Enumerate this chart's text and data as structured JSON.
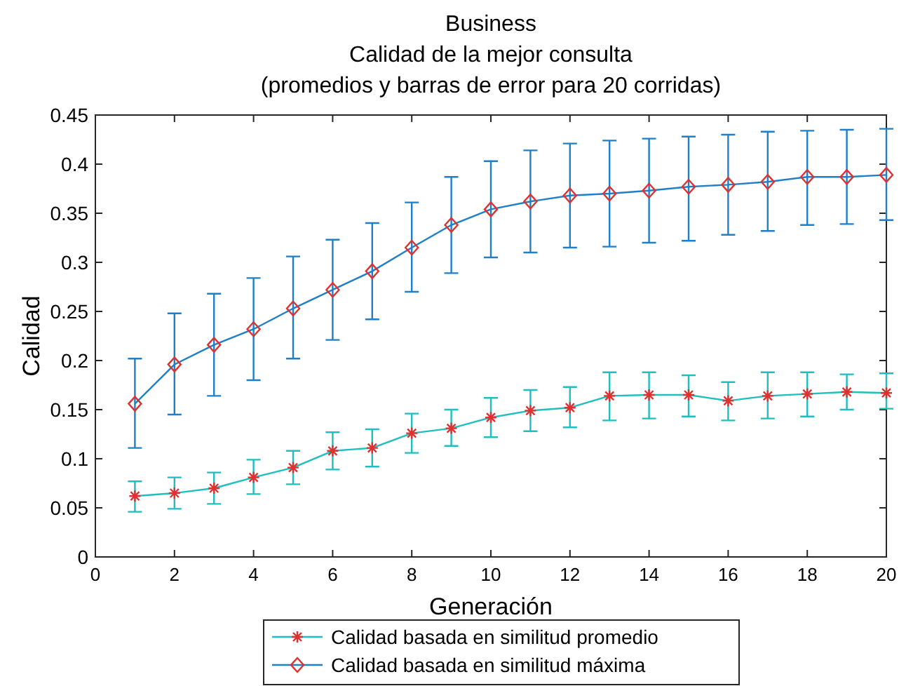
{
  "chart_data": {
    "type": "line",
    "title": "Business",
    "subtitle": "Calidad de la mejor consulta\n(promedios y barras de error para 20 corridas)",
    "xlabel": "Generación",
    "ylabel": "Calidad",
    "x": [
      1,
      2,
      3,
      4,
      5,
      6,
      7,
      8,
      9,
      10,
      11,
      12,
      13,
      14,
      15,
      16,
      17,
      18,
      19,
      20
    ],
    "series": [
      {
        "name": "Calidad basada en similitud promedio",
        "color": "#1fbfbf",
        "marker": "cross",
        "values": [
          0.062,
          0.065,
          0.07,
          0.081,
          0.091,
          0.108,
          0.111,
          0.126,
          0.131,
          0.142,
          0.149,
          0.152,
          0.164,
          0.165,
          0.165,
          0.159,
          0.164,
          0.166,
          0.168,
          0.167
        ],
        "errors": [
          [
            0.046,
            0.077
          ],
          [
            0.049,
            0.081
          ],
          [
            0.054,
            0.086
          ],
          [
            0.064,
            0.099
          ],
          [
            0.074,
            0.108
          ],
          [
            0.089,
            0.127
          ],
          [
            0.092,
            0.13
          ],
          [
            0.106,
            0.146
          ],
          [
            0.113,
            0.15
          ],
          [
            0.122,
            0.162
          ],
          [
            0.128,
            0.17
          ],
          [
            0.132,
            0.173
          ],
          [
            0.139,
            0.188
          ],
          [
            0.141,
            0.188
          ],
          [
            0.143,
            0.185
          ],
          [
            0.139,
            0.178
          ],
          [
            0.141,
            0.188
          ],
          [
            0.143,
            0.188
          ],
          [
            0.15,
            0.186
          ],
          [
            0.151,
            0.187
          ]
        ]
      },
      {
        "name": "Calidad basada en similitud máxima",
        "color": "#1f7fc8",
        "marker": "diamond",
        "values": [
          0.156,
          0.196,
          0.216,
          0.232,
          0.253,
          0.272,
          0.291,
          0.315,
          0.338,
          0.354,
          0.362,
          0.368,
          0.37,
          0.373,
          0.377,
          0.379,
          0.382,
          0.387,
          0.387,
          0.389
        ],
        "errors": [
          [
            0.111,
            0.202
          ],
          [
            0.145,
            0.248
          ],
          [
            0.164,
            0.268
          ],
          [
            0.18,
            0.284
          ],
          [
            0.202,
            0.306
          ],
          [
            0.221,
            0.323
          ],
          [
            0.242,
            0.34
          ],
          [
            0.27,
            0.361
          ],
          [
            0.289,
            0.387
          ],
          [
            0.305,
            0.403
          ],
          [
            0.31,
            0.414
          ],
          [
            0.315,
            0.421
          ],
          [
            0.316,
            0.424
          ],
          [
            0.32,
            0.426
          ],
          [
            0.322,
            0.428
          ],
          [
            0.328,
            0.43
          ],
          [
            0.332,
            0.433
          ],
          [
            0.338,
            0.434
          ],
          [
            0.339,
            0.435
          ],
          [
            0.343,
            0.436
          ]
        ]
      }
    ],
    "xlim": [
      0,
      20
    ],
    "xticks": [
      0,
      2,
      4,
      6,
      8,
      10,
      12,
      14,
      16,
      18,
      20
    ],
    "ylim": [
      0,
      0.45
    ],
    "yticks": [
      0,
      0.05,
      0.1,
      0.15,
      0.2,
      0.25,
      0.3,
      0.35,
      0.4,
      0.45
    ],
    "grid": false,
    "legend": "bottom",
    "line_style": "solid"
  }
}
